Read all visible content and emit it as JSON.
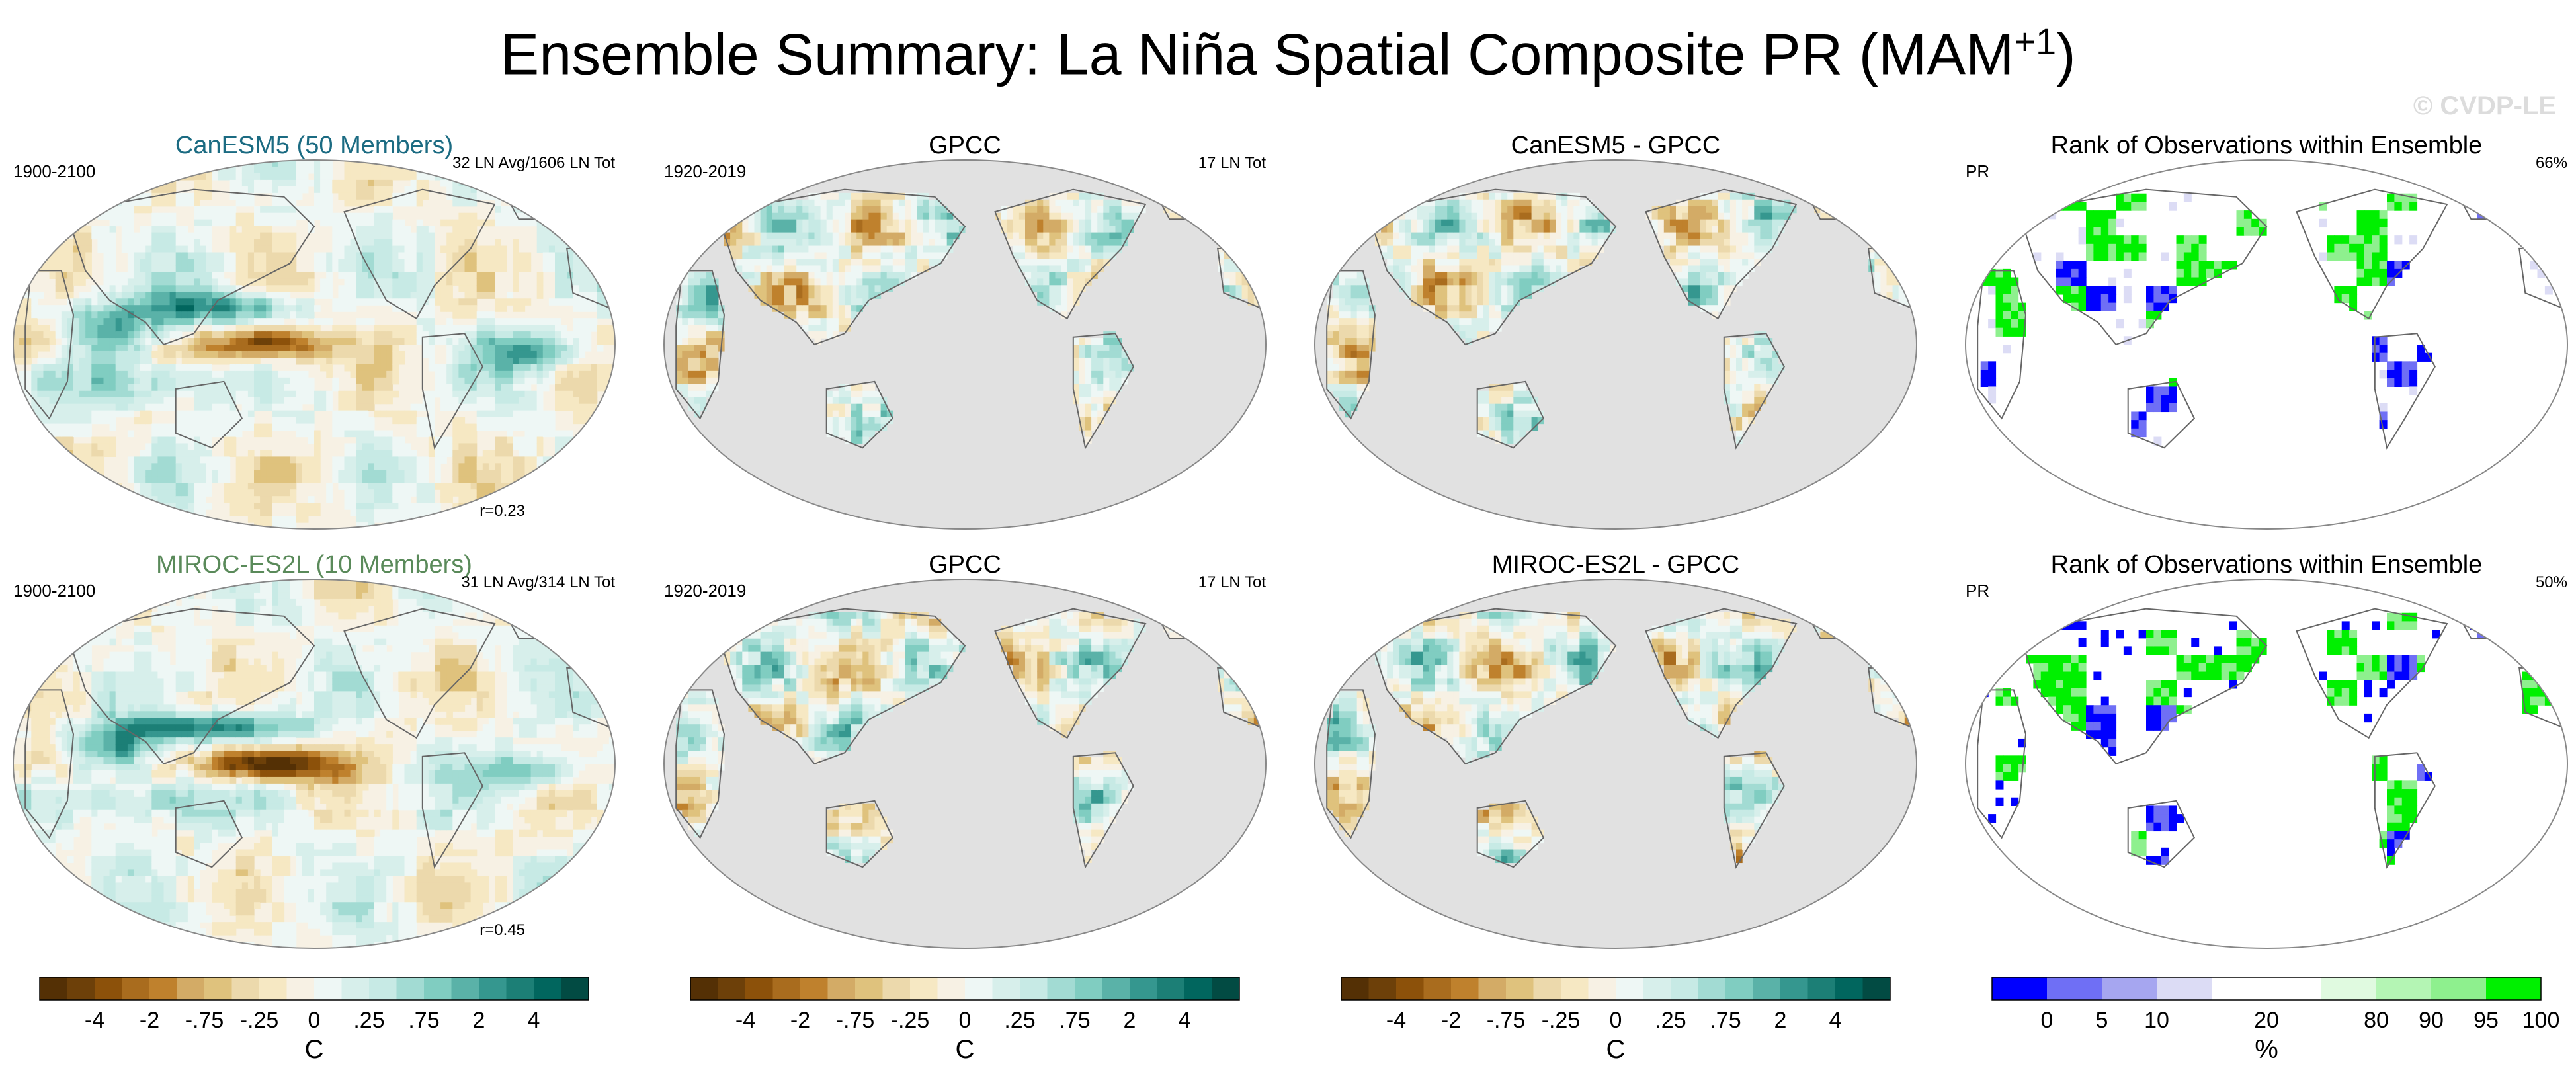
{
  "title": {
    "main": "Ensemble Summary: La Niña Spatial Composite PR (MAM",
    "sup": "+1",
    "close": ")"
  },
  "watermark": "© CVDP-LE",
  "colors": {
    "ocean_grey": "#e1e1e1",
    "land_outline": "#666666",
    "brown_teal_scale": [
      "#543005",
      "#6d4009",
      "#8c510a",
      "#a96c1e",
      "#bf812d",
      "#d3ab66",
      "#dfc27d",
      "#ecd9ac",
      "#f6e8c3",
      "#f7f1e4",
      "#eef7f5",
      "#d7efeb",
      "#c7eae5",
      "#a2dbd3",
      "#80cdc1",
      "#5ab2a8",
      "#35978f",
      "#1c7f76",
      "#01665e",
      "#024b43"
    ],
    "rank_scale": [
      "#0000ff",
      "#6f6ff5",
      "#a6a6f0",
      "#dcdcf5",
      "#ffffff",
      "#ffffff",
      "#e0fae0",
      "#b4f5b4",
      "#8ef08e",
      "#00f000"
    ]
  },
  "panels": [
    {
      "title": "CanESM5 (50 Members)",
      "title_color": "#1b6b82",
      "left": "1900-2100",
      "right": "32 LN Avg/1606 LN Tot",
      "corr": "r=0.23"
    },
    {
      "title": "GPCC",
      "title_color": "#000000",
      "left": "1920-2019",
      "right": "17 LN Tot",
      "corr": ""
    },
    {
      "title": "CanESM5 - GPCC",
      "title_color": "#000000",
      "left": "",
      "right": "",
      "corr": ""
    },
    {
      "title": "Rank of Observations within Ensemble",
      "title_color": "#000000",
      "left": "PR",
      "right": "66%",
      "corr": ""
    },
    {
      "title": "MIROC-ES2L (10 Members)",
      "title_color": "#5a8a5a",
      "left": "1900-2100",
      "right": "31 LN Avg/314 LN Tot",
      "corr": "r=0.45"
    },
    {
      "title": "GPCC",
      "title_color": "#000000",
      "left": "1920-2019",
      "right": "17 LN Tot",
      "corr": ""
    },
    {
      "title": "MIROC-ES2L - GPCC",
      "title_color": "#000000",
      "left": "",
      "right": "",
      "corr": ""
    },
    {
      "title": "Rank of Observations within Ensemble",
      "title_color": "#000000",
      "left": "PR",
      "right": "50%",
      "corr": ""
    }
  ],
  "colorbars": [
    {
      "ticks": [
        "-4",
        "-2",
        "-.75",
        "-.25",
        "0",
        ".25",
        ".75",
        "2",
        "4"
      ],
      "unit": "C"
    },
    {
      "ticks": [
        "-4",
        "-2",
        "-.75",
        "-.25",
        "0",
        ".25",
        ".75",
        "2",
        "4"
      ],
      "unit": "C"
    },
    {
      "ticks": [
        "-4",
        "-2",
        "-.75",
        "-.25",
        "0",
        ".25",
        ".75",
        "2",
        "4"
      ],
      "unit": "C"
    },
    {
      "ticks": [
        "0",
        "5",
        "10",
        "20",
        "80",
        "90",
        "95",
        "100"
      ],
      "unit": "%"
    }
  ],
  "chart_data": [
    {
      "type": "heatmap",
      "title": "CanESM5 (50 Members)",
      "period": "1900-2100",
      "count": "32 LN Avg/1606 LN Tot",
      "correlation": 0.23,
      "projection": "Robinson, Pacific-centered",
      "coverage": "global"
    },
    {
      "type": "heatmap",
      "title": "GPCC",
      "period": "1920-2019",
      "count": "17 LN Tot",
      "coverage": "land only"
    },
    {
      "type": "heatmap",
      "title": "CanESM5 - GPCC",
      "coverage": "land only"
    },
    {
      "type": "heatmap",
      "title": "Rank of Observations within Ensemble",
      "variable": "PR",
      "percent": 66,
      "coverage": "land only"
    },
    {
      "type": "heatmap",
      "title": "MIROC-ES2L (10 Members)",
      "period": "1900-2100",
      "count": "31 LN Avg/314 LN Tot",
      "correlation": 0.45,
      "coverage": "global"
    },
    {
      "type": "heatmap",
      "title": "GPCC",
      "period": "1920-2019",
      "count": "17 LN Tot",
      "coverage": "land only"
    },
    {
      "type": "heatmap",
      "title": "MIROC-ES2L - GPCC",
      "coverage": "land only"
    },
    {
      "type": "heatmap",
      "title": "Rank of Observations within Ensemble",
      "variable": "PR",
      "percent": 50,
      "coverage": "land only"
    }
  ]
}
